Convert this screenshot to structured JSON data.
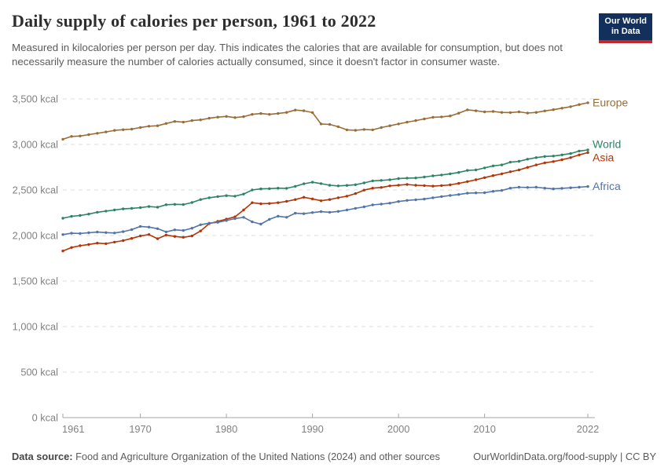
{
  "header": {
    "title": "Daily supply of calories per person, 1961 to 2022",
    "subtitle": "Measured in kilocalories per person per day. This indicates the calories that are available for consumption, but does not necessarily measure the number of calories actually consumed, since it doesn't factor in consumer waste.",
    "logo": {
      "line1": "Our World",
      "line2": "in Data",
      "bg_color": "#12305B",
      "stripe_color": "#C4262B"
    }
  },
  "footer": {
    "source_label": "Data source:",
    "source_text": " Food and Agriculture Organization of the United Nations (2024) and other sources",
    "credit": "OurWorldinData.org/food-supply | CC BY"
  },
  "chart_data": {
    "type": "line",
    "title": "Daily supply of calories per person, 1961 to 2022",
    "xlabel": "",
    "ylabel": "kcal per person per day",
    "x_start": 1961,
    "x_end": 2022,
    "ylim": [
      0,
      3500
    ],
    "grid": "horizontal-dashed",
    "legend_position": "line-end-labels",
    "yticks": [
      {
        "value": 0,
        "label": "0 kcal"
      },
      {
        "value": 500,
        "label": "500 kcal"
      },
      {
        "value": 1000,
        "label": "1,000 kcal"
      },
      {
        "value": 1500,
        "label": "1,500 kcal"
      },
      {
        "value": 2000,
        "label": "2,000 kcal"
      },
      {
        "value": 2500,
        "label": "2,500 kcal"
      },
      {
        "value": 3000,
        "label": "3,000 kcal"
      },
      {
        "value": 3500,
        "label": "3,500 kcal"
      }
    ],
    "xticks": [
      {
        "value": 1961,
        "label": "1961"
      },
      {
        "value": 1970,
        "label": "1970"
      },
      {
        "value": 1980,
        "label": "1980"
      },
      {
        "value": 1990,
        "label": "1990"
      },
      {
        "value": 2000,
        "label": "2000"
      },
      {
        "value": 2010,
        "label": "2010"
      },
      {
        "value": 2022,
        "label": "2022"
      }
    ],
    "series": [
      {
        "name": "Europe",
        "color": "#996D39",
        "values": [
          3057,
          3088,
          3092,
          3108,
          3122,
          3137,
          3154,
          3162,
          3168,
          3186,
          3200,
          3205,
          3230,
          3253,
          3245,
          3262,
          3270,
          3288,
          3300,
          3308,
          3295,
          3305,
          3330,
          3340,
          3330,
          3340,
          3352,
          3378,
          3370,
          3350,
          3225,
          3220,
          3195,
          3160,
          3155,
          3165,
          3160,
          3185,
          3205,
          3225,
          3245,
          3262,
          3280,
          3298,
          3303,
          3313,
          3343,
          3380,
          3370,
          3358,
          3362,
          3352,
          3350,
          3358,
          3345,
          3352,
          3368,
          3382,
          3398,
          3415,
          3438,
          3458
        ]
      },
      {
        "name": "World",
        "color": "#2C8465",
        "values": [
          2190,
          2210,
          2220,
          2235,
          2255,
          2268,
          2280,
          2292,
          2298,
          2306,
          2318,
          2310,
          2338,
          2342,
          2340,
          2362,
          2395,
          2415,
          2428,
          2438,
          2432,
          2455,
          2500,
          2512,
          2515,
          2520,
          2518,
          2540,
          2568,
          2585,
          2570,
          2552,
          2545,
          2550,
          2558,
          2578,
          2600,
          2605,
          2612,
          2625,
          2630,
          2632,
          2642,
          2655,
          2665,
          2678,
          2692,
          2715,
          2720,
          2742,
          2765,
          2775,
          2805,
          2815,
          2838,
          2855,
          2868,
          2872,
          2885,
          2900,
          2928,
          2940
        ]
      },
      {
        "name": "Asia",
        "color": "#B13507",
        "values": [
          1830,
          1868,
          1888,
          1902,
          1916,
          1910,
          1928,
          1944,
          1968,
          1995,
          2010,
          1965,
          2005,
          1990,
          1980,
          1995,
          2050,
          2130,
          2155,
          2180,
          2205,
          2280,
          2360,
          2348,
          2352,
          2360,
          2375,
          2395,
          2420,
          2402,
          2382,
          2395,
          2415,
          2432,
          2460,
          2498,
          2520,
          2528,
          2545,
          2553,
          2560,
          2552,
          2548,
          2542,
          2548,
          2556,
          2572,
          2592,
          2612,
          2635,
          2658,
          2678,
          2700,
          2720,
          2748,
          2775,
          2798,
          2812,
          2832,
          2855,
          2885,
          2910
        ]
      },
      {
        "name": "Africa",
        "color": "#5274A9",
        "values": [
          2010,
          2025,
          2022,
          2030,
          2038,
          2032,
          2028,
          2042,
          2065,
          2100,
          2092,
          2075,
          2040,
          2062,
          2055,
          2080,
          2118,
          2135,
          2145,
          2165,
          2185,
          2200,
          2150,
          2125,
          2178,
          2212,
          2200,
          2245,
          2240,
          2252,
          2262,
          2255,
          2265,
          2280,
          2298,
          2315,
          2336,
          2345,
          2355,
          2373,
          2385,
          2392,
          2400,
          2415,
          2428,
          2440,
          2450,
          2465,
          2468,
          2470,
          2485,
          2495,
          2520,
          2530,
          2528,
          2530,
          2520,
          2512,
          2518,
          2524,
          2530,
          2538
        ]
      }
    ]
  }
}
